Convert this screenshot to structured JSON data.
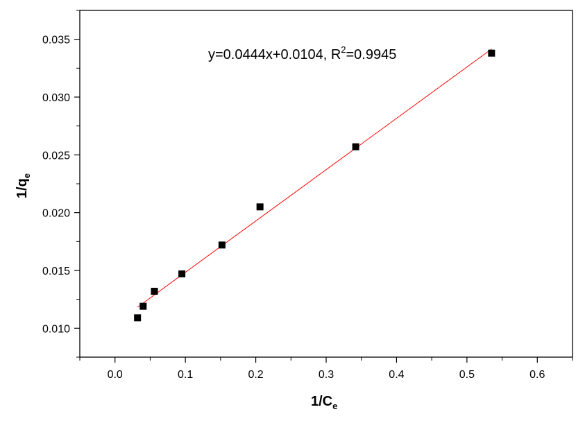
{
  "chart_data": {
    "type": "scatter",
    "xlabel_main": "1/C",
    "xlabel_sub": "e",
    "ylabel_main": "1/q",
    "ylabel_sub": "e",
    "xlim": [
      -0.05,
      0.65
    ],
    "ylim": [
      0.0075,
      0.0375
    ],
    "x_ticks": [
      0.0,
      0.1,
      0.2,
      0.3,
      0.4,
      0.5,
      0.6
    ],
    "x_tick_labels": [
      "0.0",
      "0.1",
      "0.2",
      "0.3",
      "0.4",
      "0.5",
      "0.6"
    ],
    "y_ticks": [
      0.01,
      0.015,
      0.02,
      0.025,
      0.03,
      0.035
    ],
    "y_tick_labels": [
      "0.010",
      "0.015",
      "0.020",
      "0.025",
      "0.030",
      "0.035"
    ],
    "grid": false,
    "legend": "none",
    "series": [
      {
        "marker": "square",
        "color": "#000000",
        "x": [
          0.032,
          0.04,
          0.056,
          0.095,
          0.152,
          0.206,
          0.342,
          0.535
        ],
        "y": [
          0.0109,
          0.0119,
          0.0132,
          0.0147,
          0.0172,
          0.0205,
          0.0257,
          0.0338
        ]
      }
    ],
    "fit_line": {
      "color": "#ff0000",
      "slope": 0.0444,
      "intercept": 0.0104,
      "x_range": [
        0.032,
        0.535
      ]
    },
    "annotation": {
      "text_main": "y=0.0444x+0.0104, R",
      "text_sup": "2",
      "text_tail": "=0.9945"
    }
  }
}
